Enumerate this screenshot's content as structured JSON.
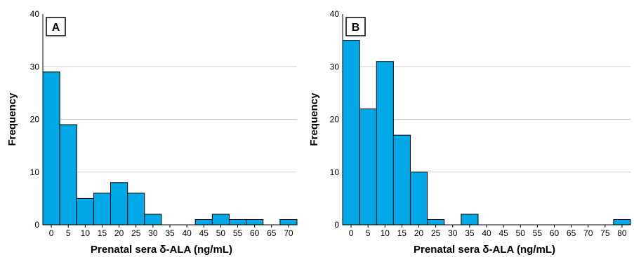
{
  "chart_data": [
    {
      "type": "bar",
      "panel_label": "A",
      "categories": [
        "0",
        "5",
        "10",
        "15",
        "20",
        "25",
        "30",
        "35",
        "40",
        "45",
        "50",
        "55",
        "60",
        "65",
        "70"
      ],
      "values": [
        29,
        19,
        5,
        6,
        8,
        6,
        2,
        0,
        0,
        1,
        2,
        1,
        1,
        0,
        1
      ],
      "xlabel": "Prenatal sera δ-ALA (ng/mL)",
      "ylabel": "Frequency",
      "yticks": [
        "0",
        "10",
        "20",
        "30",
        "40"
      ],
      "ylim": [
        0,
        40
      ],
      "grid": "horizontal",
      "bar_color": "#00a8e8"
    },
    {
      "type": "bar",
      "panel_label": "B",
      "categories": [
        "0",
        "5",
        "10",
        "15",
        "20",
        "25",
        "30",
        "35",
        "40",
        "45",
        "50",
        "55",
        "60",
        "65",
        "70",
        "75",
        "80"
      ],
      "values": [
        35,
        22,
        31,
        17,
        10,
        1,
        0,
        2,
        0,
        0,
        0,
        0,
        0,
        0,
        0,
        0,
        1
      ],
      "xlabel": "Prenatal sera δ-ALA (ng/mL)",
      "ylabel": "Frequency",
      "yticks": [
        "0",
        "10",
        "20",
        "30",
        "40"
      ],
      "ylim": [
        0,
        40
      ],
      "grid": "horizontal",
      "bar_color": "#00a8e8"
    }
  ]
}
